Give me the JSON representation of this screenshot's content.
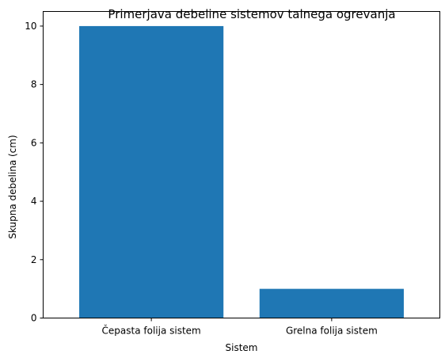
{
  "chart_data": {
    "type": "bar",
    "title": "Primerjava debeline sistemov talnega ogrevanja",
    "xlabel": "Sistem",
    "ylabel": "Skupna debelina (cm)",
    "categories": [
      "Čepasta folija sistem",
      "Grelna folija sistem"
    ],
    "values": [
      10,
      1
    ],
    "ylim": [
      0,
      10.5
    ],
    "yticks": [
      0,
      2,
      4,
      6,
      8,
      10
    ],
    "grid": false,
    "bar_color": "#1f77b4"
  }
}
